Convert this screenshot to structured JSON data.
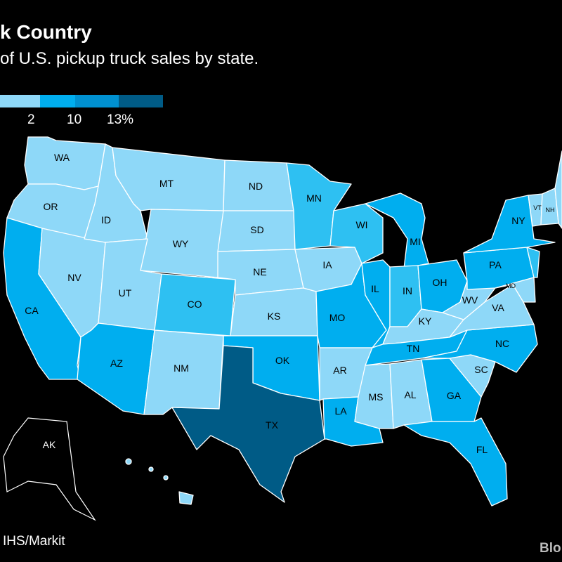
{
  "title": "k Country",
  "subtitle": "of U.S. pickup truck sales by state.",
  "legend": {
    "colors": [
      "#8ed8f8",
      "#00aeef",
      "#0091d1",
      "#005b86"
    ],
    "ticks": [
      "2",
      "10",
      "13%"
    ]
  },
  "source": "IHS/Markit",
  "brand": "Blo",
  "tiers": {
    "t1": "#8ed8f8",
    "t2": "#2ec0f2",
    "t3": "#00aeef",
    "t4": "#005b86"
  },
  "states": [
    {
      "abbr": "WA",
      "tier": "t1"
    },
    {
      "abbr": "OR",
      "tier": "t1"
    },
    {
      "abbr": "CA",
      "tier": "t3"
    },
    {
      "abbr": "NV",
      "tier": "t1"
    },
    {
      "abbr": "ID",
      "tier": "t1"
    },
    {
      "abbr": "MT",
      "tier": "t1"
    },
    {
      "abbr": "WY",
      "tier": "t1"
    },
    {
      "abbr": "UT",
      "tier": "t1"
    },
    {
      "abbr": "AZ",
      "tier": "t3"
    },
    {
      "abbr": "CO",
      "tier": "t2"
    },
    {
      "abbr": "NM",
      "tier": "t1"
    },
    {
      "abbr": "ND",
      "tier": "t1"
    },
    {
      "abbr": "SD",
      "tier": "t1"
    },
    {
      "abbr": "NE",
      "tier": "t1"
    },
    {
      "abbr": "KS",
      "tier": "t1"
    },
    {
      "abbr": "OK",
      "tier": "t3"
    },
    {
      "abbr": "TX",
      "tier": "t4"
    },
    {
      "abbr": "MN",
      "tier": "t2"
    },
    {
      "abbr": "IA",
      "tier": "t1"
    },
    {
      "abbr": "MO",
      "tier": "t3"
    },
    {
      "abbr": "AR",
      "tier": "t1"
    },
    {
      "abbr": "LA",
      "tier": "t3"
    },
    {
      "abbr": "WI",
      "tier": "t2"
    },
    {
      "abbr": "IL",
      "tier": "t3"
    },
    {
      "abbr": "MI",
      "tier": "t3"
    },
    {
      "abbr": "IN",
      "tier": "t2"
    },
    {
      "abbr": "OH",
      "tier": "t3"
    },
    {
      "abbr": "KY",
      "tier": "t1"
    },
    {
      "abbr": "TN",
      "tier": "t3"
    },
    {
      "abbr": "MS",
      "tier": "t1"
    },
    {
      "abbr": "AL",
      "tier": "t1"
    },
    {
      "abbr": "GA",
      "tier": "t3"
    },
    {
      "abbr": "FL",
      "tier": "t3"
    },
    {
      "abbr": "SC",
      "tier": "t1"
    },
    {
      "abbr": "NC",
      "tier": "t3"
    },
    {
      "abbr": "VA",
      "tier": "t1"
    },
    {
      "abbr": "WV",
      "tier": "t1"
    },
    {
      "abbr": "PA",
      "tier": "t3"
    },
    {
      "abbr": "NY",
      "tier": "t3"
    },
    {
      "abbr": "MD",
      "tier": "t1"
    },
    {
      "abbr": "VT",
      "tier": "t1"
    },
    {
      "abbr": "NH",
      "tier": "t1"
    },
    {
      "abbr": "ME",
      "tier": "t1"
    },
    {
      "abbr": "NJ",
      "tier": "t2"
    },
    {
      "abbr": "AK",
      "tier": "t0"
    },
    {
      "abbr": "HI",
      "tier": "t1"
    }
  ]
}
